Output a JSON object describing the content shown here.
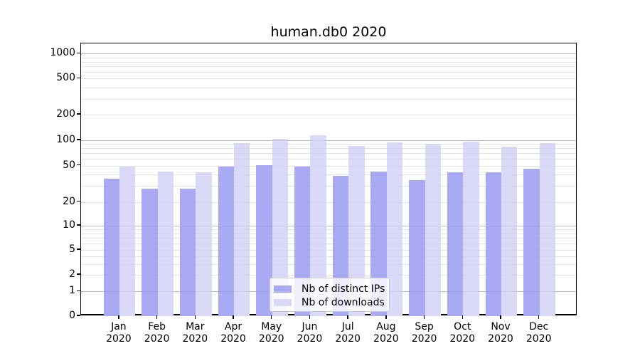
{
  "title": "human.db0 2020",
  "chart_data": {
    "type": "bar",
    "title": "human.db0 2020",
    "categories": [
      "Jan",
      "Feb",
      "Mar",
      "Apr",
      "May",
      "Jun",
      "Jul",
      "Aug",
      "Sep",
      "Oct",
      "Nov",
      "Dec"
    ],
    "year": "2020",
    "series": [
      {
        "name": "Nb of distinct IPs",
        "color": "#a9a9f4",
        "values": [
          36,
          28,
          28,
          49,
          51,
          49,
          39,
          43,
          35,
          42,
          42,
          46
        ]
      },
      {
        "name": "Nb of downloads",
        "color": "#dadaf8",
        "values": [
          49,
          43,
          42,
          92,
          103,
          114,
          86,
          94,
          90,
          96,
          84,
          92
        ]
      }
    ],
    "yscale": "symlog",
    "yticks": [
      0,
      1,
      2,
      5,
      10,
      20,
      50,
      100,
      200,
      500,
      1000
    ],
    "ylim": [
      0,
      1300
    ],
    "xlabel": "",
    "ylabel": "",
    "grid": "horizontal major and minor gridlines",
    "legend_position": "lower center inside plot"
  },
  "colors": {
    "bar_distinct_ips": "#a9a9f4",
    "bar_downloads": "#dadaf8",
    "grid_major": "#c6c6c6",
    "grid_minor": "#eaeaea",
    "axis": "#000000",
    "legend_border": "#cccccc"
  }
}
